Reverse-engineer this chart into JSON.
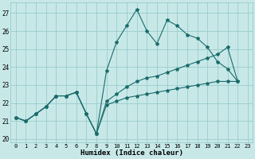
{
  "xlabel": "Humidex (Indice chaleur)",
  "bg_color": "#c8e8e8",
  "grid_color": "#99cccc",
  "line_color": "#1a6b6b",
  "xlim": [
    -0.5,
    23.5
  ],
  "ylim": [
    19.8,
    27.6
  ],
  "yticks": [
    20,
    21,
    22,
    23,
    24,
    25,
    26,
    27
  ],
  "xticks": [
    0,
    1,
    2,
    3,
    4,
    5,
    6,
    7,
    8,
    9,
    10,
    11,
    12,
    13,
    14,
    15,
    16,
    17,
    18,
    19,
    20,
    21,
    22,
    23
  ],
  "x_values": [
    0,
    1,
    2,
    3,
    4,
    5,
    6,
    7,
    8,
    9,
    10,
    11,
    12,
    13,
    14,
    15,
    16,
    17,
    18,
    19,
    20,
    21,
    22
  ],
  "series1": [
    21.2,
    21.0,
    21.4,
    21.8,
    22.4,
    22.4,
    22.6,
    21.4,
    20.3,
    23.8,
    25.4,
    26.3,
    27.2,
    26.0,
    25.3,
    26.6,
    26.3,
    25.8,
    25.6,
    25.1,
    24.3,
    23.9,
    23.2
  ],
  "series2": [
    21.2,
    21.0,
    21.4,
    21.8,
    22.4,
    22.4,
    22.6,
    21.4,
    20.3,
    22.1,
    22.5,
    22.9,
    23.2,
    23.4,
    23.5,
    23.7,
    23.9,
    24.1,
    24.3,
    24.5,
    24.7,
    25.1,
    23.2
  ],
  "series3": [
    21.2,
    21.0,
    21.4,
    21.8,
    22.4,
    22.4,
    22.6,
    21.4,
    20.3,
    21.9,
    22.1,
    22.3,
    22.4,
    22.5,
    22.6,
    22.7,
    22.8,
    22.9,
    23.0,
    23.1,
    23.2,
    23.2,
    23.2
  ]
}
